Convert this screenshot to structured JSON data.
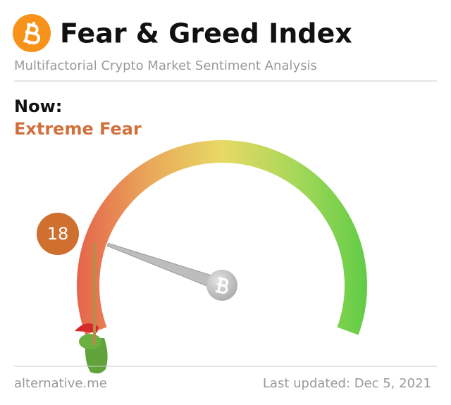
{
  "chart_data": {
    "type": "gauge",
    "title": "Fear & Greed Index",
    "subtitle": "Multifactorial Crypto Market Sentiment Analysis",
    "now_label": "Now:",
    "classification": "Extreme Fear",
    "value": 18,
    "ylim": [
      0,
      100
    ],
    "colors": [
      "#e5644c",
      "#e9a85a",
      "#e8d964",
      "#a8d85a",
      "#62cc46"
    ],
    "badge_color": "#cf6f30",
    "source": "alternative.me",
    "updated": "Last updated: Dec 5, 2021"
  }
}
